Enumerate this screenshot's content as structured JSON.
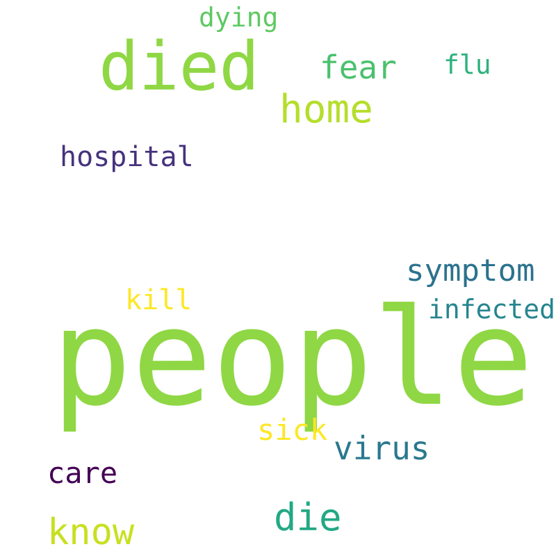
{
  "words": [
    {
      "id": "people",
      "text": "people",
      "color": "#8fd744"
    },
    {
      "id": "died",
      "text": "died",
      "color": "#8fd744"
    },
    {
      "id": "home",
      "text": "home",
      "color": "#b5de2b"
    },
    {
      "id": "fear",
      "text": "fear",
      "color": "#4ac16d"
    },
    {
      "id": "flu",
      "text": "flu",
      "color": "#2db27d"
    },
    {
      "id": "dying",
      "text": "dying",
      "color": "#5ec962"
    },
    {
      "id": "hospital",
      "text": "hospital",
      "color": "#46327e"
    },
    {
      "id": "symptom",
      "text": "symptom",
      "color": "#2c728e"
    },
    {
      "id": "infected",
      "text": "infected",
      "color": "#25858e"
    },
    {
      "id": "kill",
      "text": "kill",
      "color": "#fde725"
    },
    {
      "id": "sick",
      "text": "sick",
      "color": "#fde725"
    },
    {
      "id": "virus",
      "text": "virus",
      "color": "#2a788e"
    },
    {
      "id": "care",
      "text": "care",
      "color": "#440154"
    },
    {
      "id": "die",
      "text": "die",
      "color": "#22a884"
    },
    {
      "id": "know",
      "text": "know",
      "color": "#c8e020"
    }
  ]
}
